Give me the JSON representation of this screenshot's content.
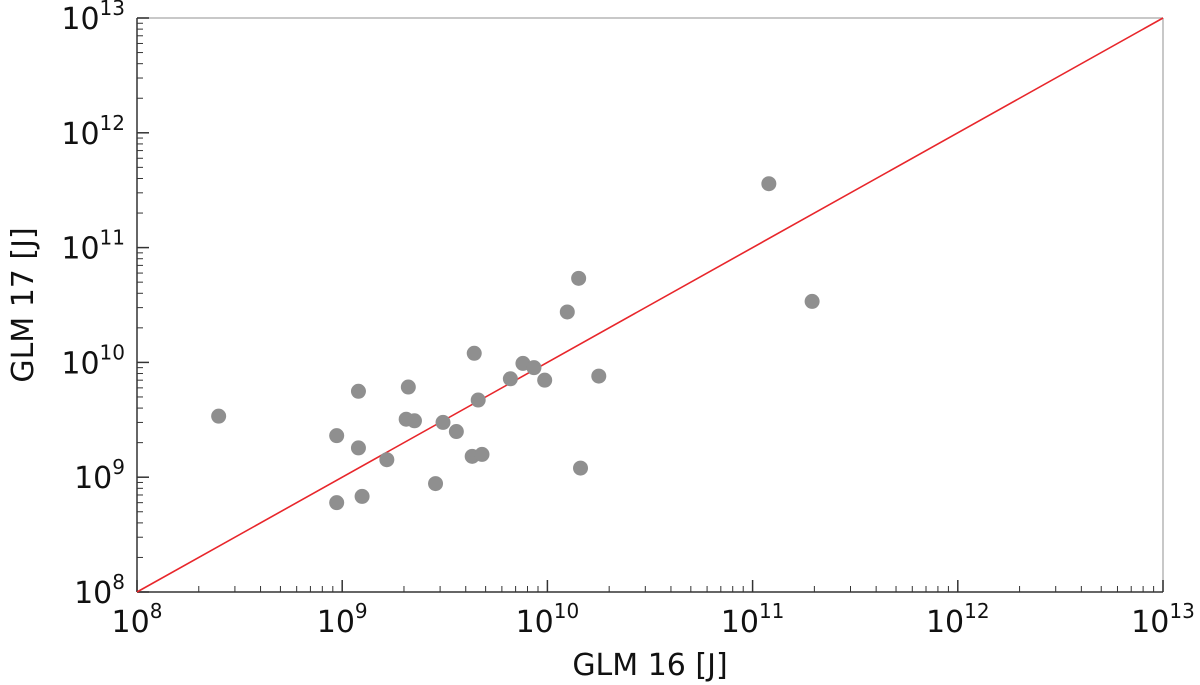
{
  "chart_data": {
    "type": "scatter",
    "x_scale": "log",
    "y_scale": "log",
    "xlabel": "GLM 16 [J]",
    "ylabel": "GLM 17 [J]",
    "xlim": [
      100000000.0,
      10000000000000.0
    ],
    "ylim": [
      100000000.0,
      10000000000000.0
    ],
    "grid": false,
    "tick_labels": [
      {
        "base": "10",
        "exp": "8"
      },
      {
        "base": "10",
        "exp": "9"
      },
      {
        "base": "10",
        "exp": "10"
      },
      {
        "base": "10",
        "exp": "11"
      },
      {
        "base": "10",
        "exp": "12"
      },
      {
        "base": "10",
        "exp": "13"
      }
    ],
    "colors": {
      "points": "#8f8f8f",
      "reference_line": "#e8262b",
      "axis": "#333333"
    },
    "reference_line": {
      "from": [
        100000000.0,
        100000000.0
      ],
      "to": [
        10000000000000.0,
        10000000000000.0
      ]
    },
    "points": [
      {
        "x": 250000000.0,
        "y": 3400000000.0
      },
      {
        "x": 940000000.0,
        "y": 2300000000.0
      },
      {
        "x": 940000000.0,
        "y": 600000000.0
      },
      {
        "x": 1200000000.0,
        "y": 5600000000.0
      },
      {
        "x": 1200000000.0,
        "y": 1800000000.0
      },
      {
        "x": 1250000000.0,
        "y": 680000000.0
      },
      {
        "x": 1650000000.0,
        "y": 1420000000.0
      },
      {
        "x": 2050000000.0,
        "y": 3200000000.0
      },
      {
        "x": 2100000000.0,
        "y": 6100000000.0
      },
      {
        "x": 2250000000.0,
        "y": 3100000000.0
      },
      {
        "x": 2850000000.0,
        "y": 880000000.0
      },
      {
        "x": 3100000000.0,
        "y": 3000000000.0
      },
      {
        "x": 3600000000.0,
        "y": 2500000000.0
      },
      {
        "x": 4300000000.0,
        "y": 1520000000.0
      },
      {
        "x": 4400000000.0,
        "y": 12000000000.0
      },
      {
        "x": 4600000000.0,
        "y": 4700000000.0
      },
      {
        "x": 4800000000.0,
        "y": 1580000000.0
      },
      {
        "x": 6600000000.0,
        "y": 7200000000.0
      },
      {
        "x": 7600000000.0,
        "y": 9800000000.0
      },
      {
        "x": 8600000000.0,
        "y": 9000000000.0
      },
      {
        "x": 9700000000.0,
        "y": 7000000000.0
      },
      {
        "x": 12500000000.0,
        "y": 27500000000.0
      },
      {
        "x": 14200000000.0,
        "y": 54000000000.0
      },
      {
        "x": 14500000000.0,
        "y": 1200000000.0
      },
      {
        "x": 17800000000.0,
        "y": 7600000000.0
      },
      {
        "x": 120000000000.0,
        "y": 360000000000.0
      },
      {
        "x": 195000000000.0,
        "y": 34000000000.0
      }
    ]
  }
}
